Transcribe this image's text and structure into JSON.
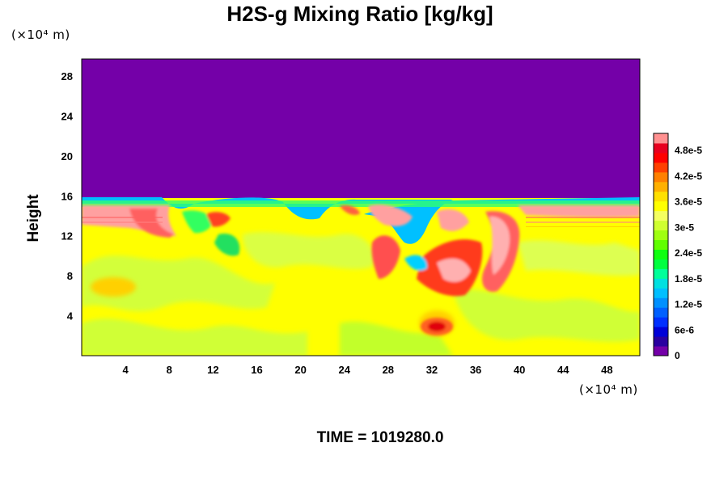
{
  "chart_data": {
    "type": "heatmap",
    "title": "H2S-g Mixing Ratio [kg/kg]",
    "ylabel": "Height",
    "x_unit": "(×10⁴ m)",
    "y_unit": "(×10⁴ m)",
    "xlim": [
      0,
      51
    ],
    "ylim": [
      0,
      29.7
    ],
    "x_ticks": [
      "4",
      "8",
      "12",
      "16",
      "20",
      "24",
      "28",
      "32",
      "36",
      "40",
      "44",
      "48"
    ],
    "y_ticks": [
      "4",
      "8",
      "12",
      "16",
      "20",
      "24",
      "28"
    ],
    "colorbar": {
      "range": [
        0,
        5.2e-05
      ],
      "labels": [
        "0",
        "6e-6",
        "1.2e-5",
        "1.8e-5",
        "2.4e-5",
        "3e-5",
        "3.6e-5",
        "4.2e-5",
        "4.8e-5"
      ],
      "colors": [
        "#7400a8",
        "#2a00a0",
        "#0000d8",
        "#0030ff",
        "#0060ff",
        "#0090ff",
        "#00bfff",
        "#00e0e0",
        "#00ff9a",
        "#00ff40",
        "#10ff10",
        "#60ff00",
        "#a0ff10",
        "#d0ff30",
        "#f4ff60",
        "#ffff00",
        "#ffe000",
        "#ffb000",
        "#ff8000",
        "#ff4000",
        "#ff0000",
        "#e80020",
        "#ff9090"
      ]
    },
    "background_value": 3.6e-05,
    "top_layer_value": 0,
    "interface_height": 15.5
  },
  "footer": {
    "time_label": "TIME = 1019280.0"
  }
}
